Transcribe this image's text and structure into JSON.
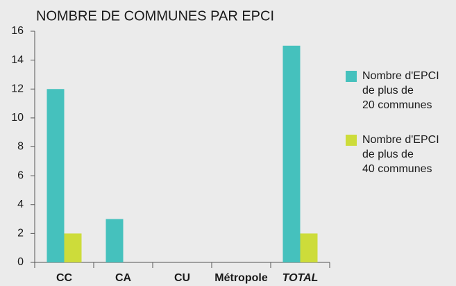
{
  "chart_data": {
    "type": "bar",
    "title": "NOMBRE DE COMMUNES PAR EPCI",
    "categories": [
      "CC",
      "CA",
      "CU",
      "Métropole",
      "TOTAL"
    ],
    "series": [
      {
        "name": "Nombre d'EPCI\nde plus de\n20 communes",
        "color": "#45c1bd",
        "values": [
          12,
          3,
          0,
          0,
          15
        ]
      },
      {
        "name": "Nombre d'EPCI\nde plus de\n40 communes",
        "color": "#cddc3a",
        "values": [
          2,
          0,
          0,
          0,
          2
        ]
      }
    ],
    "ylim": [
      0,
      16
    ],
    "yticks": [
      0,
      2,
      4,
      6,
      8,
      10,
      12,
      14,
      16
    ],
    "grid": false,
    "legend": "right"
  }
}
